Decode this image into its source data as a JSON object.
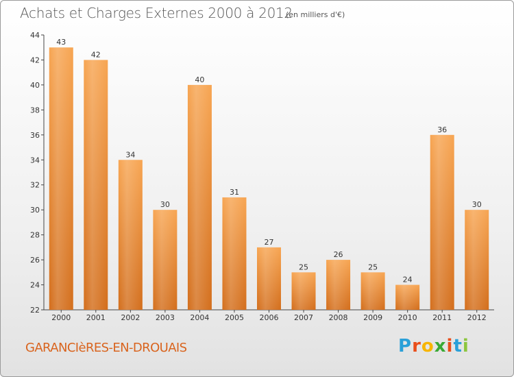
{
  "chart_data": {
    "type": "bar",
    "title": "Achats et Charges Externes 2000 à 2012",
    "unit_label": "(en milliers d'€)",
    "categories": [
      "2000",
      "2001",
      "2002",
      "2003",
      "2004",
      "2005",
      "2006",
      "2007",
      "2008",
      "2009",
      "2010",
      "2011",
      "2012"
    ],
    "values": [
      43,
      42,
      34,
      30,
      40,
      31,
      27,
      25,
      26,
      25,
      24,
      36,
      30
    ],
    "data_labels": [
      "43",
      "42",
      "34",
      "30",
      "40",
      "31",
      "27",
      "25",
      "26",
      "25",
      "24",
      "36",
      "30"
    ],
    "ylim": [
      22,
      44
    ],
    "yticks": [
      22,
      24,
      26,
      28,
      30,
      32,
      34,
      36,
      38,
      40,
      42,
      44
    ],
    "ytick_labels": [
      "22",
      "24",
      "26",
      "28",
      "30",
      "32",
      "34",
      "36",
      "38",
      "40",
      "42",
      "44"
    ],
    "xlabel": "",
    "ylabel": "",
    "grid": false,
    "legend": "none",
    "bar_color_top": "#f7a552",
    "bar_color_bottom": "#d36e1c"
  },
  "footer": {
    "commune": "GARANCIèRES-EN-DROUAIS",
    "logo_letters": [
      "P",
      "r",
      "o",
      "x",
      "i",
      "t",
      "i"
    ],
    "logo_colors": [
      "#2aa0d8",
      "#e94e1b",
      "#f7b500",
      "#3aa935",
      "#e94e1b",
      "#2aa0d8",
      "#8cc63f"
    ]
  }
}
